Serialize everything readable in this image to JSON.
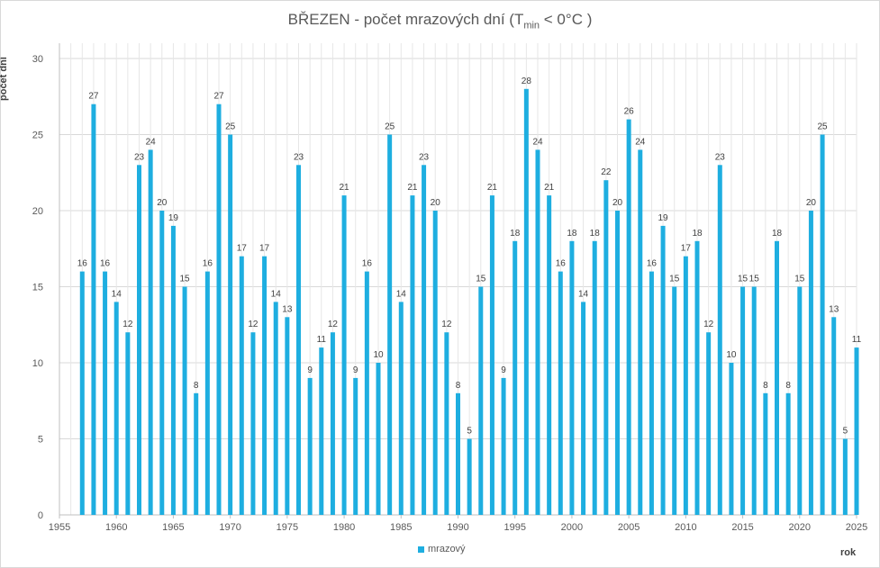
{
  "chart_data": {
    "type": "bar",
    "title": "BŘEZEN - počet mrazových dní (T",
    "title_sub": "min",
    "title_tail": " < 0°C )",
    "xlabel": "rok",
    "ylabel": "počet dní",
    "xlim": [
      1955,
      2025
    ],
    "ylim": [
      0,
      30
    ],
    "x_ticks": [
      1955,
      1960,
      1965,
      1970,
      1975,
      1980,
      1985,
      1990,
      1995,
      2000,
      2005,
      2010,
      2015,
      2020,
      2025
    ],
    "y_ticks": [
      0,
      5,
      10,
      15,
      20,
      25,
      30
    ],
    "grid": true,
    "legend_position": "bottom",
    "series": [
      {
        "name": "mrazový",
        "color": "#1eaee0",
        "x": [
          1957,
          1958,
          1959,
          1960,
          1961,
          1962,
          1963,
          1964,
          1965,
          1966,
          1967,
          1968,
          1969,
          1970,
          1971,
          1972,
          1973,
          1974,
          1975,
          1976,
          1977,
          1978,
          1979,
          1980,
          1981,
          1982,
          1983,
          1984,
          1985,
          1986,
          1987,
          1988,
          1989,
          1990,
          1991,
          1992,
          1993,
          1994,
          1995,
          1996,
          1997,
          1998,
          1999,
          2000,
          2001,
          2002,
          2003,
          2004,
          2005,
          2006,
          2007,
          2008,
          2009,
          2010,
          2011,
          2012,
          2013,
          2014,
          2015,
          2016,
          2017,
          2018,
          2019,
          2020,
          2021,
          2022,
          2023,
          2024,
          2025
        ],
        "values": [
          16,
          27,
          16,
          14,
          12,
          23,
          24,
          20,
          19,
          15,
          8,
          16,
          27,
          25,
          17,
          12,
          17,
          14,
          13,
          23,
          9,
          11,
          12,
          21,
          9,
          16,
          10,
          25,
          14,
          21,
          23,
          20,
          12,
          8,
          5,
          15,
          21,
          9,
          18,
          28,
          24,
          21,
          16,
          18,
          14,
          18,
          22,
          20,
          26,
          24,
          16,
          19,
          15,
          17,
          18,
          12,
          23,
          10,
          15,
          15,
          8,
          18,
          8,
          15,
          20,
          25,
          13,
          5,
          11
        ]
      }
    ]
  }
}
